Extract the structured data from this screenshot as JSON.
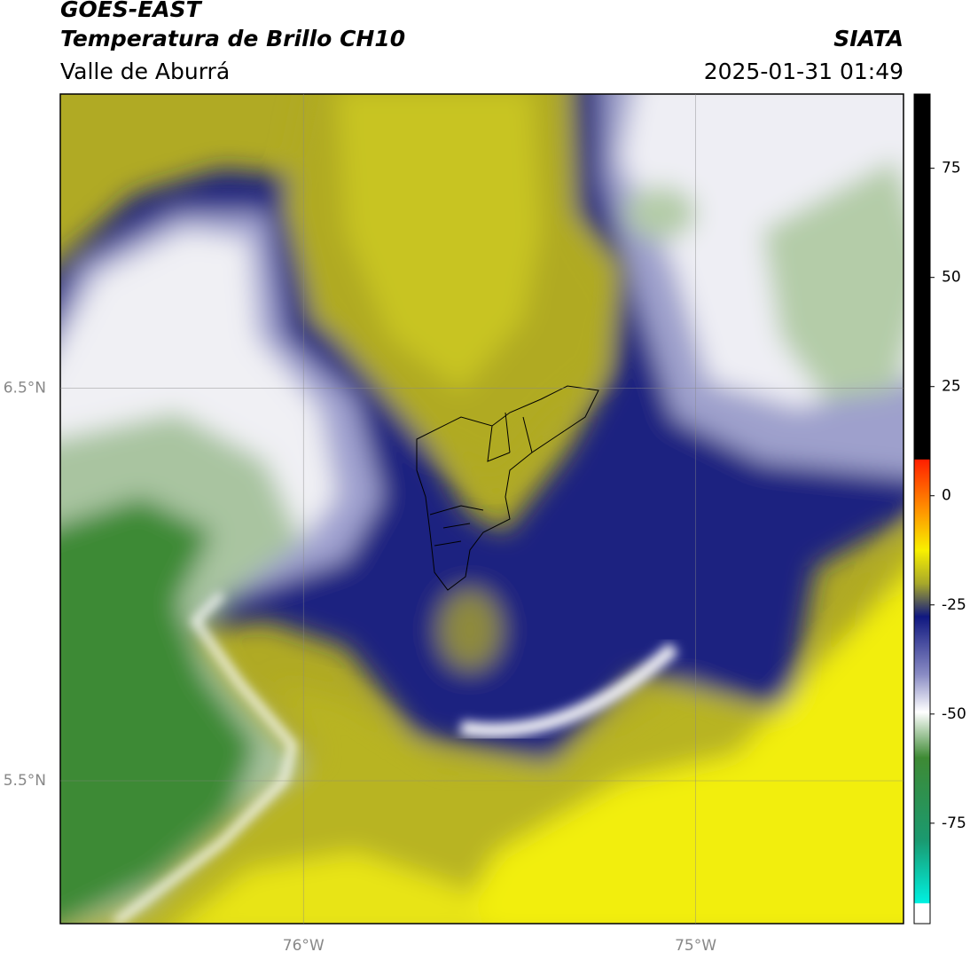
{
  "header": {
    "satellite": "GOES-EAST",
    "product": "Temperatura de Brillo CH10",
    "region": "Valle de Aburrá",
    "source": "SIATA",
    "timestamp": "2025-01-31 01:49"
  },
  "map": {
    "xlim": [
      -76.62,
      -74.47
    ],
    "ylim": [
      5.136,
      7.25
    ],
    "xticks": [
      {
        "value": -76,
        "label": "76°W"
      },
      {
        "value": -75,
        "label": "75°W"
      }
    ],
    "yticks": [
      {
        "value": 6.5,
        "label": "6.5°N"
      },
      {
        "value": 5.5,
        "label": "5.5°N"
      }
    ]
  },
  "colorbar": {
    "range": [
      -98,
      92
    ],
    "ticks": [
      75,
      50,
      25,
      0,
      -25,
      -50,
      -75
    ]
  }
}
